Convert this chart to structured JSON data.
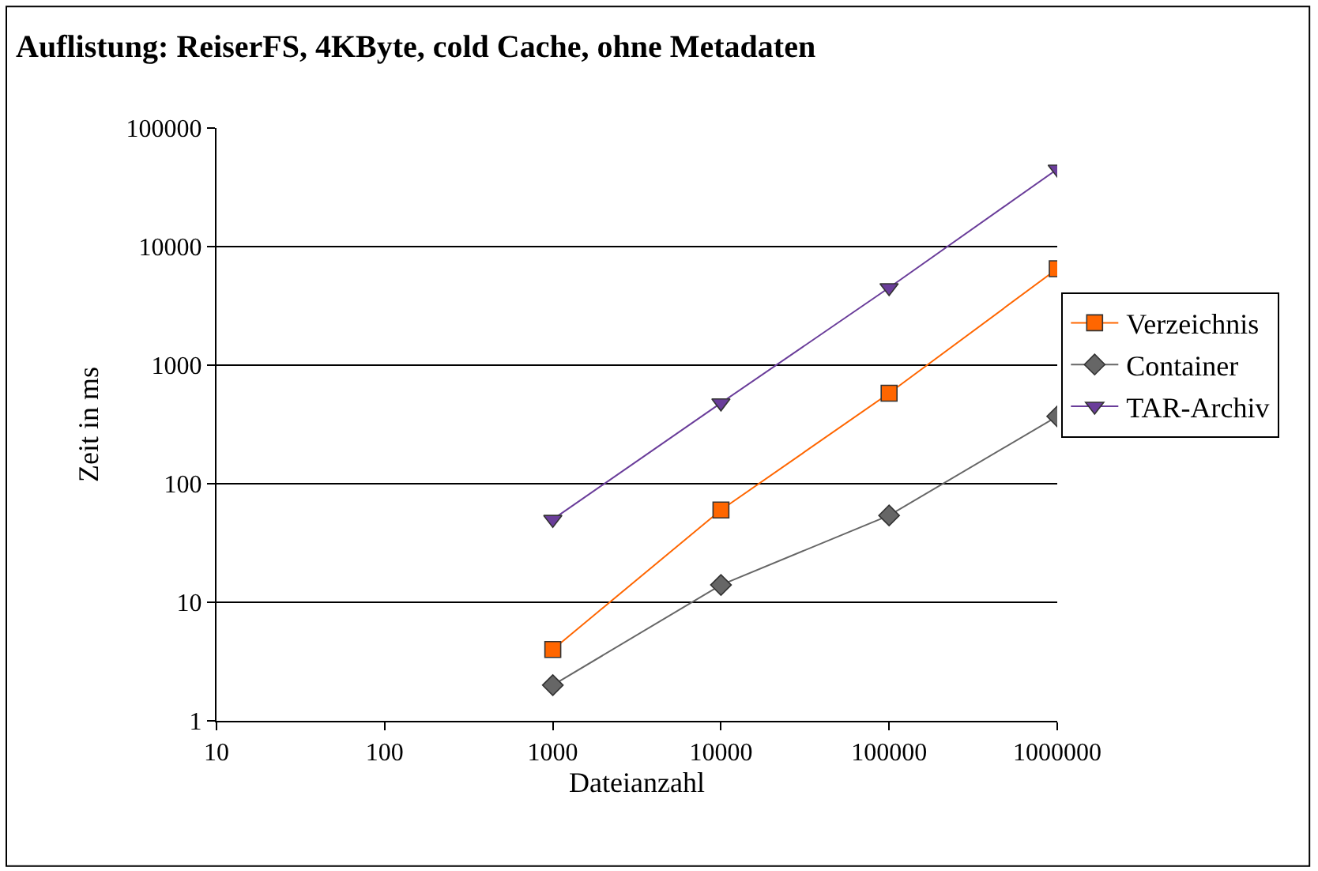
{
  "chart_data": {
    "type": "line",
    "title": "Auflistung: ReiserFS, 4KByte, cold Cache, ohne Metadaten",
    "xlabel": "Dateianzahl",
    "ylabel": "Zeit in ms",
    "log": "xy",
    "x": [
      1000,
      10000,
      100000,
      1000000
    ],
    "series": [
      {
        "name": "Verzeichnis",
        "color": "#ff6600",
        "marker": "square",
        "values": [
          4,
          60,
          580,
          6500
        ]
      },
      {
        "name": "Container",
        "color": "#666666",
        "marker": "diamond",
        "values": [
          2,
          14,
          54,
          370
        ]
      },
      {
        "name": "TAR-Archiv",
        "color": "#6a3d9a",
        "marker": "triangle",
        "values": [
          50,
          480,
          4500,
          45000
        ]
      }
    ],
    "xlim": [
      10,
      1000000
    ],
    "xticks": [
      10,
      100,
      1000,
      10000,
      100000,
      1000000
    ],
    "ylim": [
      1,
      100000
    ],
    "yticks": [
      1,
      10,
      100,
      1000,
      10000,
      100000
    ],
    "grid": "y",
    "legend": "right"
  }
}
